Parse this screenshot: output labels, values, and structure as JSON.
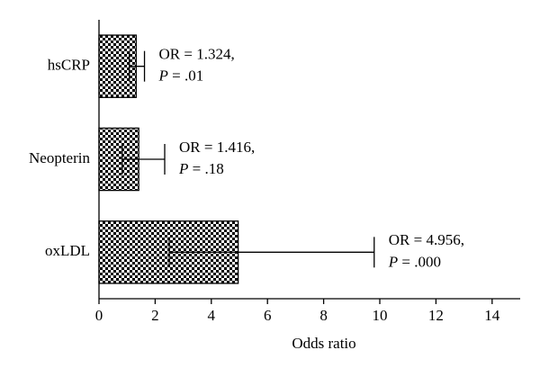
{
  "chart_data": {
    "type": "bar",
    "orientation": "horizontal",
    "categories": [
      "hsCRP",
      "Neopterin",
      "oxLDL"
    ],
    "values": [
      1.324,
      1.416,
      4.956
    ],
    "value_labels": [
      "OR = 1.324,",
      "OR = 1.416,",
      "OR = 4.956,"
    ],
    "p_labels": [
      "P = .01",
      "P = .18",
      "P = .000"
    ],
    "ci_low": [
      1.08,
      0.83,
      2.5
    ],
    "ci_high": [
      1.62,
      2.34,
      9.8
    ],
    "xlabel": "Odds ratio",
    "xlim": [
      0,
      15
    ],
    "xticks": [
      0,
      2,
      4,
      6,
      8,
      10,
      12,
      14
    ],
    "color": "#000000"
  }
}
